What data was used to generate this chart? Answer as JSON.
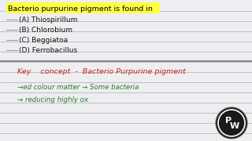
{
  "background_color": "#eeeef0",
  "lines_color": "#b0b8c8",
  "title_text": "Bacterio purpurine pigment is found in",
  "title_bg": "#ffff44",
  "options": [
    "(A) Thiospirillum",
    "(B) Chlorobium",
    "(C) Beggiatoa",
    "(D) Ferrobacillus"
  ],
  "options_color": "#111111",
  "key_line": "Key    concept  -  Bacterio Purpurine pigment",
  "key_color": "#cc2222",
  "sub_lines": [
    "→ed colour matter → Some bacteria",
    "→ reducing highly ox"
  ],
  "sub_color": "#2a7a2a",
  "logo_bg": "#1a1a1a",
  "logo_ring_color": "#aaaaaa"
}
